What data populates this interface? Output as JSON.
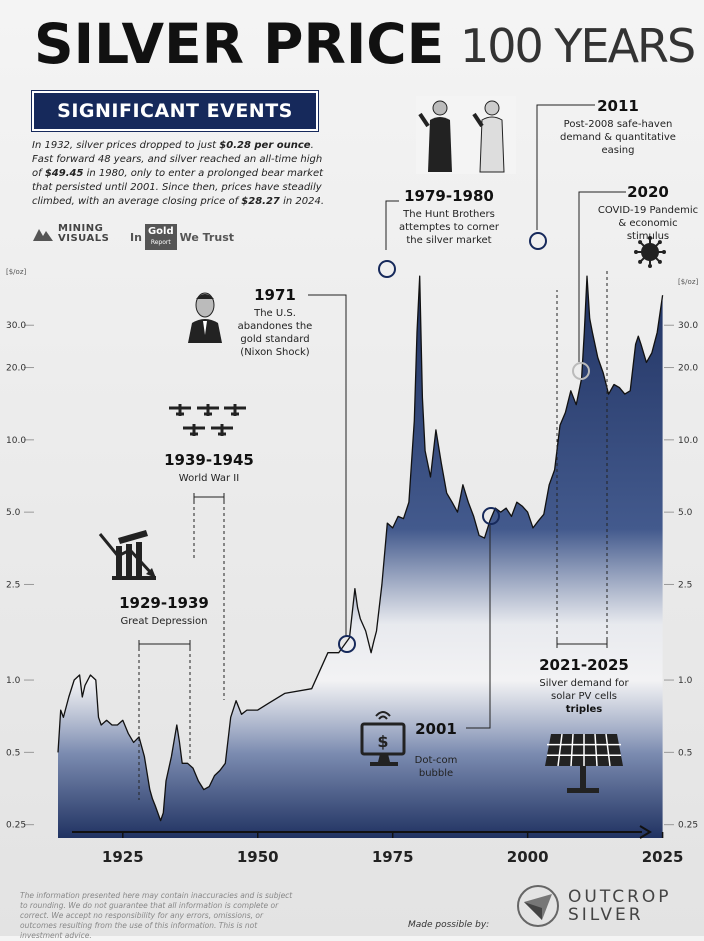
{
  "header": {
    "title_main": "SILVER PRICE",
    "title_sub": "100 YEARS",
    "banner": "SIGNIFICANT EVENTS"
  },
  "intro": {
    "p1": "In 1932, silver prices dropped to just ",
    "b1": "$0.28 per ounce",
    "p2": ". Fast forward 48 years, and silver reached an all-time high of ",
    "b2": "$49.45",
    "p3": " in 1980, only to enter a prolonged bear market that persisted until 2001. Since then, prices have steadily climbed, with an average closing price of ",
    "b3": "$28.27",
    "p4": " in 2024."
  },
  "logos": {
    "mining": [
      "MINING",
      "VISUALS"
    ],
    "ingold_in": "In",
    "ingold_gold": "Gold",
    "ingold_report": "Report",
    "ingold_trust": "We Trust",
    "outcrop": [
      "OUTCROP",
      "SILVER"
    ],
    "made_by": "Made possible by:"
  },
  "footer": {
    "disclaimer": "The information presented here may contain inaccuracies and is subject to rounding. We do not guarantee that all information is complete or correct. We accept no responsibility for any errors, omissions, or outcomes resulting from the use of this information. This is not investment advice."
  },
  "colors": {
    "navy": "#16295b",
    "ink": "#111111"
  },
  "icons": [
    "crashing-building-icon",
    "fighter-planes-icon",
    "nixon-portrait-icon",
    "hunt-brothers-icon",
    "coronavirus-icon",
    "computer-icon",
    "solar-panel-icon",
    "mining-visuals-logo",
    "outcrop-logo"
  ],
  "chart_data": {
    "type": "area",
    "yscale": "log",
    "ylabel": "[$/oz]",
    "ylim": [
      0.22,
      55
    ],
    "xlim": [
      1913,
      2026
    ],
    "yticks": [
      {
        "v": 30,
        "label": "30.0"
      },
      {
        "v": 20,
        "label": "20.0"
      },
      {
        "v": 10,
        "label": "10.0"
      },
      {
        "v": 5,
        "label": "5.0"
      },
      {
        "v": 2.5,
        "label": "2.5"
      },
      {
        "v": 1,
        "label": "1.0"
      },
      {
        "v": 0.5,
        "label": "0.5"
      },
      {
        "v": 0.25,
        "label": "0.25"
      }
    ],
    "xticks": [
      {
        "v": 1925,
        "label": "1925"
      },
      {
        "v": 1950,
        "label": "1950"
      },
      {
        "v": 1975,
        "label": "1975"
      },
      {
        "v": 2000,
        "label": "2000"
      },
      {
        "v": 2025,
        "label": "2025"
      }
    ],
    "x": [
      1913,
      1913.5,
      1914,
      1915,
      1916,
      1917,
      1917.5,
      1918,
      1919,
      1920,
      1920.5,
      1921,
      1922,
      1923,
      1924,
      1925,
      1926,
      1927,
      1928,
      1929,
      1930,
      1930.5,
      1931,
      1932,
      1932.5,
      1933,
      1934,
      1935,
      1935.5,
      1936,
      1937,
      1938,
      1939,
      1940,
      1941,
      1942,
      1943,
      1944,
      1945,
      1946,
      1947,
      1948,
      1950,
      1952,
      1955,
      1960,
      1963,
      1965,
      1967,
      1968,
      1968.5,
      1969,
      1970,
      1971,
      1971.5,
      1972,
      1973,
      1974,
      1975,
      1976,
      1977,
      1978,
      1979,
      1979.5,
      1980,
      1980.5,
      1981,
      1982,
      1983,
      1984,
      1985,
      1986,
      1987,
      1988,
      1989,
      1990,
      1991,
      1992,
      1993,
      1994,
      1995,
      1996,
      1997,
      1998,
      1999,
      2000,
      2001,
      2002,
      2003,
      2004,
      2005,
      2006,
      2007,
      2008,
      2009,
      2010,
      2010.5,
      2011,
      2011.5,
      2012,
      2013,
      2014,
      2015,
      2016,
      2017,
      2018,
      2019,
      2020,
      2020.5,
      2021,
      2022,
      2023,
      2024,
      2025
    ],
    "y": [
      0.5,
      0.75,
      0.7,
      0.85,
      1.0,
      1.05,
      0.85,
      0.95,
      1.05,
      1.0,
      0.7,
      0.65,
      0.68,
      0.65,
      0.65,
      0.68,
      0.6,
      0.55,
      0.58,
      0.48,
      0.35,
      0.32,
      0.3,
      0.26,
      0.28,
      0.38,
      0.48,
      0.65,
      0.55,
      0.45,
      0.45,
      0.43,
      0.38,
      0.35,
      0.36,
      0.4,
      0.42,
      0.45,
      0.7,
      0.82,
      0.72,
      0.75,
      0.75,
      0.8,
      0.88,
      0.92,
      1.3,
      1.3,
      1.5,
      2.4,
      2.0,
      1.8,
      1.6,
      1.3,
      1.45,
      1.6,
      2.5,
      4.5,
      4.3,
      4.8,
      4.7,
      5.5,
      12.0,
      28.0,
      48.0,
      15.0,
      9.0,
      7.0,
      11.0,
      8.0,
      6.0,
      5.5,
      5.0,
      6.5,
      5.5,
      4.8,
      4.0,
      3.9,
      4.6,
      5.2,
      5.0,
      5.2,
      4.8,
      5.5,
      5.3,
      5.0,
      4.3,
      4.6,
      4.9,
      6.5,
      7.5,
      11.5,
      13.0,
      16.0,
      14.0,
      18.0,
      28.0,
      48.0,
      32.0,
      28.0,
      22.0,
      19.0,
      15.5,
      17.0,
      16.5,
      15.5,
      16.0,
      25.0,
      27.0,
      25.0,
      21.0,
      23.0,
      28.0,
      40.0
    ],
    "events": [
      {
        "year": "1929-1939",
        "desc": "Great Depression"
      },
      {
        "year": "1939-1945",
        "desc": "World War II"
      },
      {
        "year": "1971",
        "desc": "The U.S. abandones the gold standard (Nixon Shock)"
      },
      {
        "year": "1979-1980",
        "desc": "The Hunt Brothers attemptes to corner the silver market"
      },
      {
        "year": "2001",
        "desc": "Dot-com bubble"
      },
      {
        "year": "2011",
        "desc": "Post-2008 safe-haven demand & quantitative easing"
      },
      {
        "year": "2020",
        "desc": "COVID-19 Pandemic & economic stimulus"
      },
      {
        "year": "2021-2025",
        "desc": "Silver demand for solar PV cells",
        "emph": "triples"
      }
    ]
  }
}
